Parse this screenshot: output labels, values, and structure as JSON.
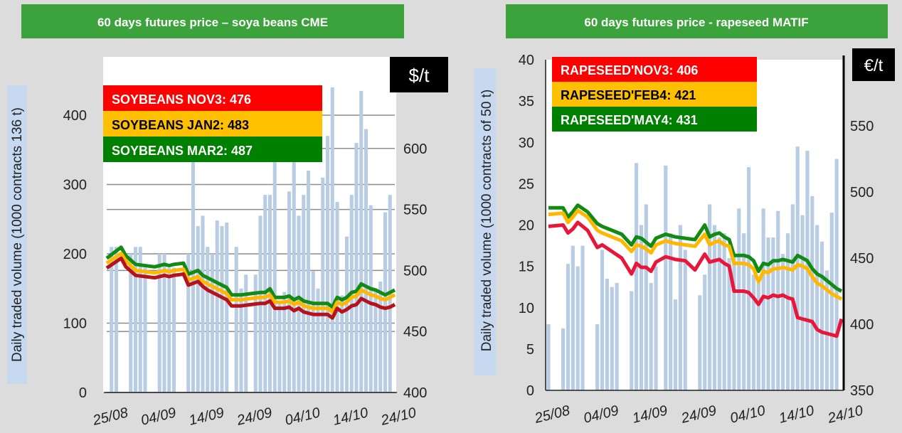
{
  "chart_data": [
    {
      "type": "bar+line",
      "title": "60 days futures price – soya beans CME",
      "ylabel": "Daily traded volume  (1000 contracts  136 t)",
      "y2label": "$/t",
      "ylim": [
        0,
        440
      ],
      "y2lim": [
        400,
        650
      ],
      "y_ticks": [
        0,
        100,
        200,
        300,
        400
      ],
      "y2_ticks": [
        400,
        450,
        500,
        550,
        600
      ],
      "x_ticks": [
        "25/08",
        "04/09",
        "14/09",
        "24/09",
        "04/10",
        "14/10",
        "24/10"
      ],
      "x_tick_positions": [
        1,
        11,
        21,
        31,
        41,
        51,
        61
      ],
      "x_range": [
        0,
        60
      ],
      "grid": true,
      "legend_placement": "top-left",
      "colors": {
        "NOV3": "#e30613",
        "JAN2": "#ffc000",
        "MAR2": "#1e8c1e",
        "bars": "#b8cce4",
        "line_nov": "#b5121b"
      },
      "legend": [
        {
          "label": "SOYBEANS NOV3: 476",
          "bg": "#ff0000",
          "fg": "#ffffff"
        },
        {
          "label": "SOYBEANS JAN2: 483",
          "bg": "#ffc000",
          "fg": "#000000"
        },
        {
          "label": "SOYBEANS MAR2: 487",
          "bg": "#008000",
          "fg": "#ffffff"
        }
      ],
      "bars": {
        "name": "Daily traded volume",
        "x": [
          1,
          2,
          5,
          6,
          7,
          8,
          11,
          12,
          13,
          14,
          17,
          18,
          19,
          20,
          21,
          22,
          23,
          24,
          25,
          27,
          28,
          29,
          31,
          32,
          33,
          34,
          35,
          36,
          37,
          38,
          39,
          40,
          41,
          42,
          43,
          44,
          45,
          46,
          47,
          48,
          49,
          50,
          51,
          52,
          53,
          54,
          55,
          56,
          57,
          58,
          59
        ],
        "values": [
          210,
          210,
          200,
          210,
          210,
          180,
          200,
          200,
          180,
          180,
          200,
          360,
          240,
          255,
          210,
          200,
          248,
          240,
          245,
          210,
          150,
          170,
          170,
          255,
          285,
          285,
          335,
          130,
          145,
          290,
          380,
          255,
          285,
          320,
          175,
          150,
          310,
          370,
          450,
          275,
          140,
          225,
          285,
          360,
          435,
          380,
          270,
          150,
          160,
          260,
          285
        ]
      },
      "series": [
        {
          "name": "SOYBEANS MAR2",
          "x": [
            0,
            3,
            4,
            6,
            10,
            12,
            13,
            14,
            16,
            17,
            19,
            20,
            21,
            23,
            24,
            25,
            26,
            28,
            30,
            32,
            33,
            34,
            35,
            36,
            37,
            38,
            39,
            40,
            41,
            42,
            43,
            44,
            45,
            46,
            47,
            48,
            49,
            50,
            51,
            52,
            53,
            54,
            55,
            56,
            57,
            58,
            59,
            60
          ],
          "values": [
            510,
            519,
            512,
            505,
            503,
            505,
            504,
            505,
            506,
            497,
            500,
            496,
            494,
            490,
            488,
            486,
            480,
            480,
            481,
            482,
            482,
            485,
            478,
            478,
            478,
            479,
            476,
            478,
            475,
            474,
            473,
            473,
            473,
            473,
            470,
            478,
            476,
            478,
            482,
            483,
            489,
            487,
            485,
            484,
            482,
            480,
            482,
            484
          ]
        },
        {
          "name": "SOYBEANS JAN2",
          "x": [
            0,
            3,
            4,
            6,
            10,
            12,
            13,
            14,
            16,
            17,
            19,
            20,
            21,
            23,
            24,
            25,
            26,
            28,
            30,
            32,
            33,
            34,
            35,
            36,
            37,
            38,
            39,
            40,
            41,
            42,
            43,
            44,
            45,
            46,
            47,
            48,
            49,
            50,
            51,
            52,
            53,
            54,
            55,
            56,
            57,
            58,
            59,
            60
          ],
          "values": [
            506,
            514,
            508,
            500,
            498,
            500,
            499,
            500,
            501,
            492,
            495,
            491,
            489,
            485,
            483,
            481,
            476,
            476,
            477,
            478,
            478,
            480,
            474,
            474,
            474,
            475,
            472,
            474,
            471,
            470,
            469,
            469,
            469,
            469,
            466,
            474,
            472,
            474,
            478,
            479,
            484,
            482,
            480,
            479,
            477,
            476,
            478,
            480
          ]
        },
        {
          "name": "SOYBEANS NOV3",
          "x": [
            0,
            3,
            4,
            6,
            10,
            12,
            13,
            14,
            16,
            17,
            19,
            20,
            21,
            23,
            24,
            25,
            26,
            28,
            30,
            32,
            33,
            34,
            35,
            36,
            37,
            38,
            39,
            40,
            41,
            42,
            43,
            44,
            45,
            46,
            47,
            48,
            49,
            50,
            51,
            52,
            53,
            54,
            55,
            56,
            57,
            58,
            59,
            60
          ],
          "values": [
            502,
            510,
            503,
            496,
            494,
            496,
            495,
            496,
            497,
            488,
            491,
            487,
            484,
            480,
            478,
            476,
            471,
            471,
            472,
            473,
            473,
            475,
            469,
            469,
            469,
            470,
            467,
            469,
            466,
            465,
            464,
            464,
            464,
            464,
            461,
            469,
            466,
            468,
            471,
            472,
            477,
            475,
            473,
            472,
            470,
            469,
            470,
            472
          ]
        }
      ]
    },
    {
      "type": "bar+line",
      "title": "60 days futures price - rapeseed MATIF",
      "ylabel": "Daily traded volume  (1000 contracts of 50 t)",
      "y2label": "€/t",
      "ylim": [
        0,
        40
      ],
      "y2lim": [
        350,
        600
      ],
      "y_ticks": [
        0,
        5,
        10,
        15,
        20,
        25,
        30,
        35,
        40
      ],
      "y2_ticks": [
        350,
        400,
        450,
        500,
        550
      ],
      "x_ticks": [
        "25/08",
        "04/09",
        "14/09",
        "24/09",
        "04/10",
        "14/10",
        "24/10"
      ],
      "x_tick_positions": [
        1,
        11,
        21,
        31,
        41,
        51,
        61
      ],
      "x_range": [
        0,
        60
      ],
      "grid": false,
      "legend_placement": "top-left",
      "colors": {
        "NOV3": "#e8173a",
        "FEB4": "#ffc000",
        "MAY4": "#1e8c1e",
        "bars": "#b8cce4"
      },
      "legend": [
        {
          "label": "RAPESEED'NOV3: 406",
          "bg": "#ff0000",
          "fg": "#ffffff"
        },
        {
          "label": "RAPESEED'FEB4: 421",
          "bg": "#ffc000",
          "fg": "#000000"
        },
        {
          "label": "RAPESEED'MAY4: 431",
          "bg": "#008000",
          "fg": "#ffffff"
        }
      ],
      "bars": {
        "name": "Daily traded volume",
        "x": [
          0,
          3,
          4,
          5,
          6,
          7,
          10,
          11,
          12,
          13,
          14,
          17,
          18,
          19,
          20,
          21,
          22,
          24,
          25,
          26,
          27,
          28,
          31,
          32,
          33,
          34,
          35,
          36,
          37,
          38,
          39,
          40,
          41,
          42,
          43,
          44,
          45,
          46,
          47,
          48,
          49,
          50,
          51,
          52,
          53,
          54,
          55,
          56,
          57,
          58,
          59
        ],
        "values": [
          8,
          7.5,
          15.3,
          17.5,
          15,
          17.5,
          8,
          17,
          13.5,
          12.5,
          13,
          12,
          27.5,
          20,
          22.5,
          13,
          15,
          27.2,
          19,
          11,
          20,
          17,
          11.5,
          14,
          22.5,
          20,
          18.5,
          19,
          16,
          16.5,
          22,
          19,
          27,
          14,
          13,
          22,
          18.5,
          18.5,
          21.7,
          16.5,
          19,
          22.5,
          29.5,
          21.2,
          29,
          23.5,
          20,
          18,
          14.5,
          21.5,
          28
        ]
      },
      "series": [
        {
          "name": "RAPESEED'MAY4",
          "x": [
            0,
            3,
            4,
            5,
            6,
            8,
            10,
            11,
            13,
            15,
            17,
            18,
            19,
            20,
            21,
            22,
            24,
            25,
            26,
            28,
            30,
            32,
            33,
            34,
            35,
            36,
            37,
            38,
            39,
            40,
            41,
            42,
            43,
            44,
            45,
            46,
            47,
            48,
            49,
            50,
            51,
            52,
            53,
            54,
            55,
            56,
            57,
            58,
            59,
            60
          ],
          "values": [
            488,
            488,
            481,
            485,
            490,
            485,
            476,
            474,
            471,
            468,
            460,
            466,
            465,
            462,
            459,
            465,
            468,
            467,
            466,
            465,
            464,
            475,
            466,
            468,
            469,
            466,
            464,
            452,
            452,
            452,
            451,
            448,
            440,
            446,
            445,
            448,
            448,
            449,
            448,
            447,
            452,
            450,
            448,
            442,
            438,
            436,
            433,
            430,
            427,
            425
          ]
        },
        {
          "name": "RAPESEED'FEB4",
          "x": [
            0,
            3,
            4,
            5,
            6,
            8,
            10,
            11,
            13,
            15,
            17,
            18,
            19,
            20,
            21,
            22,
            24,
            25,
            26,
            28,
            30,
            32,
            33,
            34,
            35,
            36,
            37,
            38,
            39,
            40,
            41,
            42,
            43,
            44,
            45,
            46,
            47,
            48,
            49,
            50,
            51,
            52,
            53,
            54,
            55,
            56,
            57,
            58,
            59,
            60
          ],
          "values": [
            483,
            484,
            477,
            481,
            486,
            481,
            471,
            469,
            466,
            463,
            455,
            460,
            459,
            457,
            454,
            460,
            463,
            462,
            461,
            460,
            459,
            468,
            460,
            462,
            463,
            460,
            459,
            446,
            446,
            446,
            445,
            442,
            432,
            440,
            439,
            442,
            442,
            443,
            442,
            441,
            445,
            444,
            442,
            436,
            431,
            429,
            426,
            423,
            421,
            419
          ]
        },
        {
          "name": "RAPESEED'NOV3",
          "x": [
            0,
            3,
            4,
            5,
            6,
            8,
            10,
            11,
            13,
            15,
            17,
            18,
            19,
            20,
            21,
            22,
            24,
            25,
            26,
            28,
            30,
            32,
            33,
            34,
            35,
            36,
            37,
            38,
            39,
            40,
            41,
            42,
            43,
            44,
            45,
            46,
            47,
            48,
            49,
            50,
            51,
            52,
            53,
            54,
            55,
            56,
            57,
            58,
            59,
            60
          ],
          "values": [
            474,
            475,
            469,
            472,
            477,
            471,
            458,
            460,
            455,
            450,
            438,
            446,
            443,
            443,
            440,
            447,
            451,
            450,
            449,
            448,
            441,
            453,
            447,
            448,
            449,
            446,
            444,
            425,
            425,
            425,
            424,
            420,
            415,
            421,
            420,
            422,
            421,
            422,
            420,
            419,
            405,
            404,
            403,
            402,
            396,
            394,
            393,
            392,
            391,
            404
          ]
        }
      ]
    }
  ]
}
